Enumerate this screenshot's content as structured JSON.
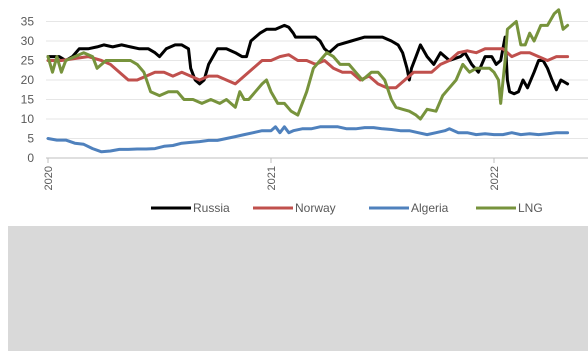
{
  "chart_data": {
    "type": "line",
    "title": "",
    "xlabel": "",
    "ylabel": "",
    "ylim": [
      0,
      37
    ],
    "yticks": [
      0,
      5,
      10,
      15,
      20,
      25,
      30,
      35
    ],
    "xticks": [
      "2020",
      "2021",
      "2022"
    ],
    "grid": "horizontal",
    "legend": "bottom",
    "series": [
      {
        "name": "Russia",
        "color": "#000000",
        "points": [
          [
            2020.0,
            26
          ],
          [
            2020.03,
            26
          ],
          [
            2020.05,
            26
          ],
          [
            2020.08,
            25
          ],
          [
            2020.11,
            26
          ],
          [
            2020.14,
            28
          ],
          [
            2020.18,
            28
          ],
          [
            2020.22,
            28.5
          ],
          [
            2020.25,
            29
          ],
          [
            2020.29,
            28.5
          ],
          [
            2020.33,
            29
          ],
          [
            2020.37,
            28.5
          ],
          [
            2020.41,
            28
          ],
          [
            2020.45,
            28
          ],
          [
            2020.48,
            27
          ],
          [
            2020.5,
            26
          ],
          [
            2020.53,
            28
          ],
          [
            2020.57,
            29
          ],
          [
            2020.6,
            29
          ],
          [
            2020.63,
            28
          ],
          [
            2020.64,
            23
          ],
          [
            2020.66,
            20
          ],
          [
            2020.68,
            19
          ],
          [
            2020.7,
            20
          ],
          [
            2020.72,
            24
          ],
          [
            2020.74,
            26
          ],
          [
            2020.76,
            28
          ],
          [
            2020.8,
            28
          ],
          [
            2020.84,
            27
          ],
          [
            2020.87,
            26
          ],
          [
            2020.89,
            26
          ],
          [
            2020.91,
            30
          ],
          [
            2020.95,
            32
          ],
          [
            2020.98,
            33
          ],
          [
            2021.02,
            33
          ],
          [
            2021.06,
            34
          ],
          [
            2021.08,
            33.5
          ],
          [
            2021.1,
            32
          ],
          [
            2021.11,
            31
          ],
          [
            2021.15,
            31
          ],
          [
            2021.2,
            31
          ],
          [
            2021.22,
            30
          ],
          [
            2021.24,
            28
          ],
          [
            2021.26,
            27
          ],
          [
            2021.3,
            29
          ],
          [
            2021.36,
            30
          ],
          [
            2021.42,
            31
          ],
          [
            2021.5,
            31
          ],
          [
            2021.54,
            30
          ],
          [
            2021.57,
            29
          ],
          [
            2021.59,
            27
          ],
          [
            2021.61,
            23
          ],
          [
            2021.62,
            20
          ],
          [
            2021.63,
            23
          ],
          [
            2021.65,
            26
          ],
          [
            2021.67,
            29
          ],
          [
            2021.7,
            26
          ],
          [
            2021.73,
            24
          ],
          [
            2021.76,
            27
          ],
          [
            2021.8,
            25
          ],
          [
            2021.85,
            26
          ],
          [
            2021.87,
            27
          ],
          [
            2021.9,
            24
          ],
          [
            2021.93,
            22
          ],
          [
            2021.96,
            26
          ],
          [
            2021.99,
            26
          ],
          [
            2022.01,
            24
          ],
          [
            2022.03,
            25
          ],
          [
            2022.05,
            31
          ],
          [
            2022.06,
            20
          ],
          [
            2022.07,
            17
          ],
          [
            2022.09,
            16.5
          ],
          [
            2022.11,
            17
          ],
          [
            2022.13,
            20
          ],
          [
            2022.15,
            18
          ],
          [
            2022.18,
            22
          ],
          [
            2022.2,
            25
          ],
          [
            2022.22,
            25
          ],
          [
            2022.24,
            23
          ],
          [
            2022.26,
            20
          ],
          [
            2022.28,
            17.5
          ],
          [
            2022.3,
            20
          ],
          [
            2022.33,
            19
          ]
        ]
      },
      {
        "name": "Norway",
        "color": "#c0504d",
        "points": [
          [
            2020.0,
            25
          ],
          [
            2020.06,
            25
          ],
          [
            2020.12,
            25.5
          ],
          [
            2020.18,
            26
          ],
          [
            2020.24,
            25
          ],
          [
            2020.28,
            24
          ],
          [
            2020.32,
            22
          ],
          [
            2020.36,
            20
          ],
          [
            2020.4,
            20
          ],
          [
            2020.44,
            21
          ],
          [
            2020.48,
            22
          ],
          [
            2020.52,
            22
          ],
          [
            2020.56,
            21
          ],
          [
            2020.6,
            22
          ],
          [
            2020.64,
            21
          ],
          [
            2020.68,
            20
          ],
          [
            2020.72,
            21
          ],
          [
            2020.76,
            21
          ],
          [
            2020.8,
            20
          ],
          [
            2020.84,
            19
          ],
          [
            2020.88,
            21
          ],
          [
            2020.92,
            23
          ],
          [
            2020.96,
            25
          ],
          [
            2021.0,
            25
          ],
          [
            2021.04,
            26
          ],
          [
            2021.08,
            26.5
          ],
          [
            2021.12,
            25
          ],
          [
            2021.16,
            25
          ],
          [
            2021.2,
            24
          ],
          [
            2021.24,
            25
          ],
          [
            2021.28,
            23
          ],
          [
            2021.32,
            22
          ],
          [
            2021.36,
            22
          ],
          [
            2021.4,
            20
          ],
          [
            2021.44,
            21
          ],
          [
            2021.48,
            19
          ],
          [
            2021.52,
            18
          ],
          [
            2021.56,
            18
          ],
          [
            2021.6,
            20
          ],
          [
            2021.64,
            22
          ],
          [
            2021.68,
            22
          ],
          [
            2021.72,
            22
          ],
          [
            2021.76,
            24
          ],
          [
            2021.8,
            25
          ],
          [
            2021.84,
            27
          ],
          [
            2021.88,
            27.5
          ],
          [
            2021.92,
            27
          ],
          [
            2021.96,
            28
          ],
          [
            2022.0,
            28
          ],
          [
            2022.04,
            28
          ],
          [
            2022.08,
            26
          ],
          [
            2022.12,
            27
          ],
          [
            2022.16,
            27
          ],
          [
            2022.2,
            26
          ],
          [
            2022.24,
            25
          ],
          [
            2022.28,
            26
          ],
          [
            2022.33,
            26
          ]
        ]
      },
      {
        "name": "Algeria",
        "color": "#4f81bd",
        "points": [
          [
            2020.0,
            5
          ],
          [
            2020.04,
            4.6
          ],
          [
            2020.08,
            4.6
          ],
          [
            2020.12,
            3.8
          ],
          [
            2020.16,
            3.5
          ],
          [
            2020.2,
            2.4
          ],
          [
            2020.24,
            1.6
          ],
          [
            2020.28,
            1.8
          ],
          [
            2020.32,
            2.2
          ],
          [
            2020.36,
            2.2
          ],
          [
            2020.4,
            2.3
          ],
          [
            2020.44,
            2.3
          ],
          [
            2020.48,
            2.4
          ],
          [
            2020.52,
            3
          ],
          [
            2020.56,
            3.2
          ],
          [
            2020.6,
            3.8
          ],
          [
            2020.64,
            4
          ],
          [
            2020.68,
            4.2
          ],
          [
            2020.72,
            4.5
          ],
          [
            2020.76,
            4.5
          ],
          [
            2020.8,
            5
          ],
          [
            2020.84,
            5.5
          ],
          [
            2020.88,
            6
          ],
          [
            2020.92,
            6.5
          ],
          [
            2020.96,
            7
          ],
          [
            2021.0,
            7
          ],
          [
            2021.02,
            8
          ],
          [
            2021.04,
            6.5
          ],
          [
            2021.06,
            8
          ],
          [
            2021.08,
            6.5
          ],
          [
            2021.1,
            7
          ],
          [
            2021.14,
            7.5
          ],
          [
            2021.18,
            7.5
          ],
          [
            2021.22,
            8
          ],
          [
            2021.26,
            8
          ],
          [
            2021.3,
            8
          ],
          [
            2021.34,
            7.5
          ],
          [
            2021.38,
            7.5
          ],
          [
            2021.42,
            7.8
          ],
          [
            2021.46,
            7.8
          ],
          [
            2021.5,
            7.5
          ],
          [
            2021.54,
            7.3
          ],
          [
            2021.58,
            7
          ],
          [
            2021.62,
            7
          ],
          [
            2021.66,
            6.5
          ],
          [
            2021.7,
            6
          ],
          [
            2021.74,
            6.5
          ],
          [
            2021.78,
            7
          ],
          [
            2021.8,
            7.5
          ],
          [
            2021.84,
            6.5
          ],
          [
            2021.88,
            6.5
          ],
          [
            2021.92,
            6
          ],
          [
            2021.96,
            6.2
          ],
          [
            2022.0,
            6
          ],
          [
            2022.04,
            6
          ],
          [
            2022.08,
            6.5
          ],
          [
            2022.12,
            6
          ],
          [
            2022.16,
            6.2
          ],
          [
            2022.2,
            6
          ],
          [
            2022.24,
            6.2
          ],
          [
            2022.28,
            6.5
          ],
          [
            2022.33,
            6.5
          ]
        ]
      },
      {
        "name": "LNG",
        "color": "#77933c",
        "points": [
          [
            2020.0,
            26
          ],
          [
            2020.02,
            22
          ],
          [
            2020.04,
            26
          ],
          [
            2020.06,
            22
          ],
          [
            2020.08,
            25
          ],
          [
            2020.12,
            26
          ],
          [
            2020.16,
            27
          ],
          [
            2020.2,
            26
          ],
          [
            2020.22,
            23
          ],
          [
            2020.26,
            25
          ],
          [
            2020.3,
            25
          ],
          [
            2020.34,
            25
          ],
          [
            2020.37,
            25
          ],
          [
            2020.4,
            24
          ],
          [
            2020.43,
            22
          ],
          [
            2020.46,
            17
          ],
          [
            2020.5,
            16
          ],
          [
            2020.54,
            17
          ],
          [
            2020.58,
            17
          ],
          [
            2020.61,
            15
          ],
          [
            2020.65,
            15
          ],
          [
            2020.69,
            14
          ],
          [
            2020.73,
            15
          ],
          [
            2020.77,
            14
          ],
          [
            2020.8,
            15
          ],
          [
            2020.84,
            13
          ],
          [
            2020.86,
            17
          ],
          [
            2020.88,
            15
          ],
          [
            2020.9,
            15
          ],
          [
            2020.93,
            17
          ],
          [
            2020.96,
            19
          ],
          [
            2020.98,
            20
          ],
          [
            2021.0,
            17
          ],
          [
            2021.03,
            14
          ],
          [
            2021.06,
            14
          ],
          [
            2021.09,
            12
          ],
          [
            2021.12,
            11
          ],
          [
            2021.16,
            17
          ],
          [
            2021.19,
            23
          ],
          [
            2021.22,
            25
          ],
          [
            2021.25,
            27
          ],
          [
            2021.28,
            26
          ],
          [
            2021.31,
            24
          ],
          [
            2021.35,
            24
          ],
          [
            2021.38,
            22
          ],
          [
            2021.41,
            20
          ],
          [
            2021.45,
            22
          ],
          [
            2021.48,
            22
          ],
          [
            2021.51,
            20
          ],
          [
            2021.54,
            15
          ],
          [
            2021.56,
            13
          ],
          [
            2021.59,
            12.5
          ],
          [
            2021.62,
            12
          ],
          [
            2021.65,
            11
          ],
          [
            2021.67,
            10
          ],
          [
            2021.7,
            12.5
          ],
          [
            2021.74,
            12
          ],
          [
            2021.77,
            16
          ],
          [
            2021.8,
            18
          ],
          [
            2021.83,
            20
          ],
          [
            2021.86,
            24
          ],
          [
            2021.89,
            22
          ],
          [
            2021.92,
            23
          ],
          [
            2021.95,
            23
          ],
          [
            2021.98,
            23
          ],
          [
            2022.0,
            22
          ],
          [
            2022.02,
            20
          ],
          [
            2022.03,
            14
          ],
          [
            2022.05,
            25
          ],
          [
            2022.06,
            33
          ],
          [
            2022.08,
            34
          ],
          [
            2022.1,
            35
          ],
          [
            2022.12,
            29
          ],
          [
            2022.14,
            29
          ],
          [
            2022.16,
            32
          ],
          [
            2022.18,
            30
          ],
          [
            2022.21,
            34
          ],
          [
            2022.24,
            34
          ],
          [
            2022.27,
            37
          ],
          [
            2022.29,
            38
          ],
          [
            2022.31,
            33
          ],
          [
            2022.33,
            34
          ]
        ]
      }
    ]
  }
}
